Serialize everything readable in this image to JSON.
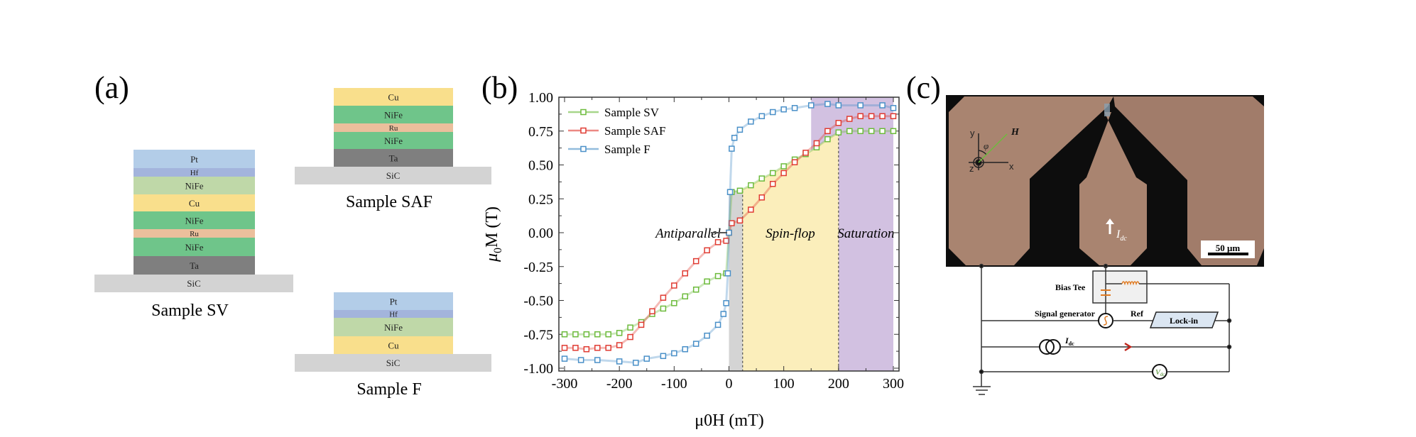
{
  "panel_a": {
    "label": "(a)",
    "stacks": [
      {
        "name": "Sample SV",
        "substrate": "SiC",
        "layers": [
          {
            "label": "Pt",
            "color": "#b3cde8"
          },
          {
            "label": "Hf",
            "color": "#a3b4dc"
          },
          {
            "label": "NiFe",
            "color": "#bfd8a8"
          },
          {
            "label": "Cu",
            "color": "#f9df8c"
          },
          {
            "label": "NiFe",
            "color": "#6fc58a"
          },
          {
            "label": "Ru",
            "color": "#ebbf9c"
          },
          {
            "label": "NiFe",
            "color": "#6fc58a"
          },
          {
            "label": "Ta",
            "color": "#7f7f7f"
          }
        ]
      },
      {
        "name": "Sample SAF",
        "substrate": "SiC",
        "layers": [
          {
            "label": "Cu",
            "color": "#f9df8c"
          },
          {
            "label": "NiFe",
            "color": "#6fc58a"
          },
          {
            "label": "Ru",
            "color": "#ebbf9c"
          },
          {
            "label": "NiFe",
            "color": "#6fc58a"
          },
          {
            "label": "Ta",
            "color": "#7f7f7f"
          }
        ]
      },
      {
        "name": "Sample F",
        "substrate": "SiC",
        "layers": [
          {
            "label": "Pt",
            "color": "#b3cde8"
          },
          {
            "label": "Hf",
            "color": "#a3b4dc"
          },
          {
            "label": "NiFe",
            "color": "#bfd8a8"
          },
          {
            "label": "Cu",
            "color": "#f9df8c"
          }
        ]
      }
    ],
    "substrate_color": "#d3d3d3"
  },
  "panel_b": {
    "label": "(b)"
  },
  "chart_data": {
    "type": "scatter",
    "xlabel": "μ0H (mT)",
    "xlabel_main": "μ",
    "xlabel_sub": "0",
    "xlabel_rest": "H (mT)",
    "ylabel_main": "μ",
    "ylabel_sub": "0",
    "ylabel_rest": "M (T)",
    "xlim": [
      -300,
      300
    ],
    "ylim": [
      -1.0,
      1.0
    ],
    "xticks": [
      "-300",
      "-200",
      "-100",
      "0",
      "100",
      "200",
      "300"
    ],
    "yticks": [
      "1.00",
      "0.75",
      "0.50",
      "0.25",
      "0.00",
      "-0.25",
      "-0.50",
      "-0.75",
      "-1.00"
    ],
    "legend": "top-left",
    "grid": false,
    "regions": [
      {
        "label": "Antiparallel",
        "from": 0,
        "to": 25,
        "color": "#d4d4d4"
      },
      {
        "label": "Spin-flop",
        "from": 25,
        "to": 200,
        "color": "#fbeebb"
      },
      {
        "label": "Saturation",
        "from": 200,
        "to": 300,
        "color": "#d2c1e1"
      }
    ],
    "series": [
      {
        "name": "Sample SV",
        "color": "#6dbb3c",
        "x": [
          -300,
          -280,
          -260,
          -240,
          -220,
          -200,
          -180,
          -160,
          -140,
          -120,
          -100,
          -80,
          -60,
          -40,
          -20,
          -5,
          0,
          5,
          20,
          40,
          60,
          80,
          100,
          120,
          140,
          160,
          180,
          200,
          220,
          240,
          260,
          280,
          300
        ],
        "y": [
          -0.75,
          -0.75,
          -0.75,
          -0.75,
          -0.75,
          -0.74,
          -0.7,
          -0.66,
          -0.6,
          -0.56,
          -0.52,
          -0.47,
          -0.42,
          -0.36,
          -0.32,
          -0.3,
          0.0,
          0.3,
          0.31,
          0.35,
          0.4,
          0.44,
          0.49,
          0.54,
          0.58,
          0.63,
          0.69,
          0.74,
          0.75,
          0.75,
          0.75,
          0.75,
          0.75
        ]
      },
      {
        "name": "Sample SAF",
        "color": "#e03b32",
        "x": [
          -300,
          -280,
          -260,
          -240,
          -220,
          -200,
          -180,
          -160,
          -140,
          -120,
          -100,
          -80,
          -60,
          -40,
          -20,
          -5,
          0,
          5,
          20,
          40,
          60,
          80,
          100,
          120,
          140,
          160,
          180,
          200,
          220,
          240,
          260,
          280,
          300
        ],
        "y": [
          -0.85,
          -0.85,
          -0.86,
          -0.85,
          -0.85,
          -0.83,
          -0.77,
          -0.68,
          -0.58,
          -0.48,
          -0.39,
          -0.3,
          -0.21,
          -0.13,
          -0.07,
          -0.06,
          0.0,
          0.07,
          0.09,
          0.17,
          0.26,
          0.36,
          0.44,
          0.52,
          0.59,
          0.66,
          0.75,
          0.81,
          0.84,
          0.86,
          0.86,
          0.86,
          0.86
        ]
      },
      {
        "name": "Sample F",
        "color": "#4a90c8",
        "x": [
          -300,
          -270,
          -240,
          -200,
          -170,
          -150,
          -120,
          -100,
          -80,
          -60,
          -40,
          -20,
          -10,
          -5,
          -2,
          0,
          2,
          5,
          10,
          20,
          40,
          60,
          80,
          100,
          120,
          150,
          180,
          200,
          240,
          280,
          300
        ],
        "y": [
          -0.93,
          -0.94,
          -0.94,
          -0.95,
          -0.96,
          -0.93,
          -0.91,
          -0.89,
          -0.86,
          -0.82,
          -0.76,
          -0.68,
          -0.6,
          -0.52,
          -0.3,
          0.0,
          0.3,
          0.62,
          0.7,
          0.76,
          0.82,
          0.86,
          0.89,
          0.91,
          0.92,
          0.94,
          0.95,
          0.94,
          0.94,
          0.94,
          0.92
        ]
      }
    ]
  },
  "panel_c": {
    "label": "(c)",
    "micrograph": {
      "axis_y": "y",
      "axis_x": "x",
      "axis_z": "z",
      "angle": "φ",
      "field": "H",
      "current_main": "I",
      "current_sub": "dc",
      "scale_bar": "50 μm",
      "pad_color": "#a98470"
    },
    "circuit": {
      "bias_tee": "Bias Tee",
      "signal_generator": "Signal generator",
      "ref": "Ref",
      "lockin": "Lock-in",
      "idc_main": "I",
      "idc_sub": "dc",
      "vdc_main": "V",
      "vdc_sub": "dc"
    }
  }
}
